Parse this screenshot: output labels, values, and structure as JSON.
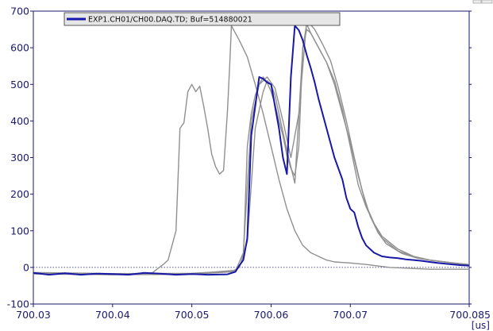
{
  "chart_data": {
    "type": "line",
    "x_unit": "[us]",
    "xlim": [
      700.03,
      700.085
    ],
    "ylim": [
      -100,
      700
    ],
    "x_ticks": [
      "700.03",
      "700.04",
      "700.05",
      "700.06",
      "700.07",
      "700.085"
    ],
    "x_tick_values": [
      700.03,
      700.04,
      700.05,
      700.06,
      700.07,
      700.085
    ],
    "y_ticks": [
      "700",
      "600",
      "500",
      "400",
      "300",
      "200",
      "100",
      "0",
      "-100"
    ],
    "y_tick_values": [
      700,
      600,
      500,
      400,
      300,
      200,
      100,
      0,
      -100
    ],
    "zero_reference_line": true,
    "legend": {
      "placement": "top-left",
      "label": "EXP1.CH01/CH00.DAQ.TD; Buf=514880021"
    },
    "colors": {
      "axis": "#1a1a6e",
      "main": "#1818a8",
      "overlay": "#909090",
      "legend_bg": "#e6e6e6"
    },
    "series": [
      {
        "name": "EXP1.CH01/CH00.DAQ.TD; Buf=514880021",
        "role": "main",
        "x": [
          700.03,
          700.032,
          700.034,
          700.036,
          700.038,
          700.04,
          700.042,
          700.044,
          700.046,
          700.048,
          700.05,
          700.052,
          700.0545,
          700.0555,
          700.056,
          700.0565,
          700.057,
          700.0575,
          700.058,
          700.0585,
          700.059,
          700.0595,
          700.06,
          700.0605,
          700.061,
          700.0615,
          700.062,
          700.0625,
          700.063,
          700.0635,
          700.064,
          700.0645,
          700.065,
          700.0655,
          700.066,
          700.067,
          700.068,
          700.069,
          700.0695,
          700.07,
          700.0705,
          700.071,
          700.0715,
          700.072,
          700.073,
          700.074,
          700.075,
          700.076,
          700.077,
          700.078,
          700.079,
          700.08,
          700.081,
          700.082,
          700.083,
          700.084,
          700.085
        ],
        "y": [
          -15,
          -20,
          -16,
          -20,
          -17,
          -18,
          -20,
          -15,
          -17,
          -20,
          -18,
          -20,
          -19,
          -12,
          5,
          20,
          80,
          360,
          440,
          520,
          515,
          505,
          500,
          440,
          380,
          300,
          255,
          520,
          660,
          648,
          620,
          580,
          545,
          505,
          460,
          380,
          300,
          240,
          190,
          160,
          150,
          110,
          80,
          60,
          40,
          30,
          27,
          25,
          22,
          20,
          18,
          15,
          12,
          10,
          8,
          6,
          5
        ]
      },
      {
        "name": "",
        "role": "overlay",
        "x": [
          700.03,
          700.035,
          700.04,
          700.045,
          700.0465,
          700.047,
          700.048,
          700.0485,
          700.049,
          700.0495,
          700.05,
          700.0505,
          700.051,
          700.0515,
          700.052,
          700.0525,
          700.053,
          700.0535,
          700.054,
          700.0545,
          700.0548,
          700.055,
          700.0555,
          700.056,
          700.057,
          700.058,
          700.059,
          700.06,
          700.061,
          700.062,
          700.063,
          700.064,
          700.065,
          700.066,
          700.067,
          700.068,
          700.07,
          700.072,
          700.075,
          700.08,
          700.085
        ],
        "y": [
          -15,
          -18,
          -20,
          -15,
          10,
          20,
          100,
          380,
          395,
          480,
          500,
          480,
          495,
          440,
          380,
          310,
          275,
          255,
          265,
          430,
          560,
          660,
          640,
          620,
          575,
          500,
          420,
          330,
          240,
          160,
          100,
          60,
          40,
          30,
          20,
          15,
          12,
          8,
          0,
          -5,
          -5
        ]
      },
      {
        "name": "",
        "role": "overlay",
        "x": [
          700.03,
          700.04,
          700.05,
          700.055,
          700.056,
          700.057,
          700.058,
          700.059,
          700.0595,
          700.06,
          700.0605,
          700.061,
          700.062,
          700.063,
          700.064,
          700.0645,
          700.065,
          700.066,
          700.067,
          700.068,
          700.069,
          700.07,
          700.071,
          700.072,
          700.073,
          700.074,
          700.076,
          700.078,
          700.08,
          700.082,
          700.085
        ],
        "y": [
          -18,
          -20,
          -19,
          -12,
          0,
          70,
          380,
          480,
          510,
          500,
          470,
          420,
          320,
          230,
          600,
          665,
          640,
          600,
          560,
          500,
          420,
          340,
          250,
          170,
          120,
          80,
          45,
          30,
          20,
          15,
          5
        ]
      },
      {
        "name": "",
        "role": "overlay",
        "x": [
          700.03,
          700.04,
          700.05,
          700.0555,
          700.0565,
          700.0575,
          700.0585,
          700.0595,
          700.0605,
          700.0615,
          700.0625,
          700.0635,
          700.0645,
          700.0655,
          700.0665,
          700.0675,
          700.0685,
          700.0695,
          700.0705,
          700.0715,
          700.0725,
          700.0735,
          700.0745,
          700.0765,
          700.0785,
          700.0805,
          700.085
        ],
        "y": [
          -14,
          -17,
          -16,
          -10,
          40,
          400,
          500,
          520,
          490,
          400,
          300,
          420,
          675,
          650,
          610,
          565,
          490,
          400,
          300,
          210,
          140,
          95,
          65,
          38,
          25,
          18,
          8
        ]
      },
      {
        "name": "",
        "role": "overlay",
        "x": [
          700.03,
          700.04,
          700.05,
          700.0555,
          700.0565,
          700.057,
          700.0575,
          700.058,
          700.0585,
          700.059,
          700.0595,
          700.06,
          700.0605,
          700.061,
          700.0615,
          700.062,
          700.0625,
          700.063,
          700.0635,
          700.064,
          700.0645,
          700.065,
          700.066,
          700.067,
          700.068,
          700.069,
          700.07,
          700.071,
          700.072,
          700.073,
          700.074,
          700.076,
          700.078,
          700.08,
          700.085
        ],
        "y": [
          -16,
          -18,
          -17,
          -8,
          20,
          330,
          420,
          470,
          500,
          520,
          505,
          480,
          445,
          400,
          360,
          305,
          270,
          250,
          330,
          600,
          650,
          640,
          600,
          560,
          510,
          430,
          330,
          225,
          165,
          120,
          85,
          50,
          30,
          20,
          6
        ]
      }
    ]
  }
}
